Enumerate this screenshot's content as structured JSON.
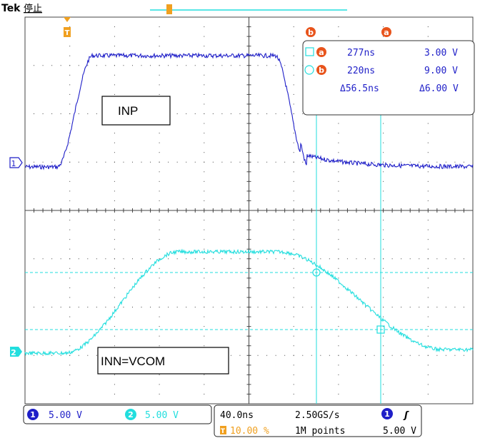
{
  "header": {
    "brand": "Tek",
    "status": "停止"
  },
  "waveforms": {
    "ch1": {
      "label": "INP",
      "color": "#1f1fc8",
      "marker": "1"
    },
    "ch2": {
      "label": "INN=VCOM",
      "color": "#22dede",
      "marker": "2"
    }
  },
  "cursor_readout": {
    "col_a_marker": "a",
    "col_b_marker": "b",
    "row_a_time": "277ns",
    "row_a_volt": "3.00 V",
    "row_b_time": "220ns",
    "row_b_volt": "9.00 V",
    "delta_time": "Δ56.5ns",
    "delta_volt": "Δ6.00 V"
  },
  "trigger_marker": "T",
  "status_bar": {
    "ch1_num": "1",
    "ch1_scale": "5.00 V",
    "ch2_num": "2",
    "ch2_scale": "5.00 V",
    "timebase": "40.0ns",
    "sample_rate": "2.50GS/s",
    "trigger_ch": "1",
    "trigger_slope": "ʃ",
    "trigger_pos_marker": "T",
    "trigger_pos": "10.00 %",
    "record_length": "1M points",
    "trigger_level": "5.00 V"
  },
  "colors": {
    "ch1": "#1f1fc8",
    "ch2": "#22dede",
    "cursor": "#e8541c",
    "trigger": "#f0a020",
    "grid": "#444444"
  }
}
